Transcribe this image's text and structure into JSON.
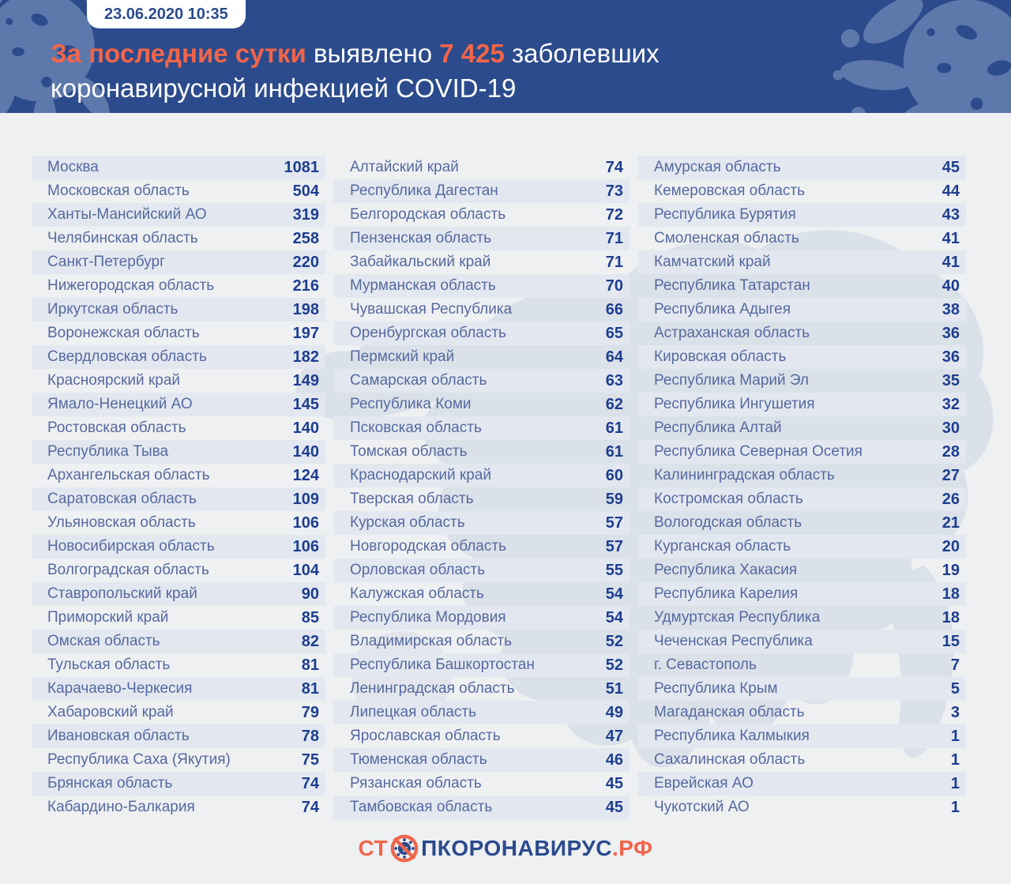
{
  "colors": {
    "navy": "#2B4B8C",
    "orange": "#F1654A",
    "body_bg": "#EEF0F2",
    "stripe": "#E3E8F0",
    "region_text": "#56699F",
    "value_text": "#1D3E8F",
    "blob": "#5D78AB",
    "map": "#CDD5E2",
    "badge_bg": "#FFFFFF"
  },
  "header": {
    "badge_datetime": "23.06.2020 10:35",
    "title": {
      "highlight1": "За последние сутки",
      "normal1": " выявлено ",
      "count": "7 425",
      "normal2": " заболевших",
      "line2": "коронавирусной инфекцией COVID-19"
    }
  },
  "chart_data": {
    "type": "table",
    "title": "За последние сутки выявлено 7 425 заболевших коронавирусной инфекцией COVID-19",
    "timestamp": "23.06.2020 10:35",
    "total_new_cases": 7425,
    "unit": "заболевших за сутки",
    "columns": [
      {
        "rows": [
          [
            "Москва",
            1081
          ],
          [
            "Московская область",
            504
          ],
          [
            "Ханты-Мансийский АО",
            319
          ],
          [
            "Челябинская область",
            258
          ],
          [
            "Санкт-Петербург",
            220
          ],
          [
            "Нижегородская область",
            216
          ],
          [
            "Иркутская область",
            198
          ],
          [
            "Воронежская область",
            197
          ],
          [
            "Свердловская область",
            182
          ],
          [
            "Красноярский край",
            149
          ],
          [
            "Ямало-Ненецкий АО",
            145
          ],
          [
            "Ростовская область",
            140
          ],
          [
            "Республика Тыва",
            140
          ],
          [
            "Архангельская область",
            124
          ],
          [
            "Саратовская область",
            109
          ],
          [
            "Ульяновская область",
            106
          ],
          [
            "Новосибирская область",
            106
          ],
          [
            "Волгоградская область",
            104
          ],
          [
            "Ставропольский край",
            90
          ],
          [
            "Приморский край",
            85
          ],
          [
            "Омская область",
            82
          ],
          [
            "Тульская область",
            81
          ],
          [
            "Карачаево-Черкесия",
            81
          ],
          [
            "Хабаровский край",
            79
          ],
          [
            "Ивановская область",
            78
          ],
          [
            "Республика Саха (Якутия)",
            75
          ],
          [
            "Брянская область",
            74
          ],
          [
            "Кабардино-Балкария",
            74
          ]
        ]
      },
      {
        "rows": [
          [
            "Алтайский край",
            74
          ],
          [
            "Республика Дагестан",
            73
          ],
          [
            "Белгородская область",
            72
          ],
          [
            "Пензенская область",
            71
          ],
          [
            "Забайкальский край",
            71
          ],
          [
            "Мурманская область",
            70
          ],
          [
            "Чувашская Республика",
            66
          ],
          [
            "Оренбургская область",
            65
          ],
          [
            "Пермский край",
            64
          ],
          [
            "Самарская область",
            63
          ],
          [
            "Республика Коми",
            62
          ],
          [
            "Псковская область",
            61
          ],
          [
            "Томская область",
            61
          ],
          [
            "Краснодарский край",
            60
          ],
          [
            "Тверская область",
            59
          ],
          [
            "Курская область",
            57
          ],
          [
            "Новгородская область",
            57
          ],
          [
            "Орловская область",
            55
          ],
          [
            "Калужская область",
            54
          ],
          [
            "Республика Мордовия",
            54
          ],
          [
            "Владимирская область",
            52
          ],
          [
            "Республика Башкортостан",
            52
          ],
          [
            "Ленинградская область",
            51
          ],
          [
            "Липецкая область",
            49
          ],
          [
            "Ярославская область",
            47
          ],
          [
            "Тюменская область",
            46
          ],
          [
            "Рязанская область",
            45
          ],
          [
            "Тамбовская область",
            45
          ]
        ]
      },
      {
        "rows": [
          [
            "Амурская область",
            45
          ],
          [
            "Кемеровская область",
            44
          ],
          [
            "Республика Бурятия",
            43
          ],
          [
            "Смоленская область",
            41
          ],
          [
            "Камчатский край",
            41
          ],
          [
            "Республика Татарстан",
            40
          ],
          [
            "Республика Адыгея",
            38
          ],
          [
            "Астраханская область",
            36
          ],
          [
            "Кировская область",
            36
          ],
          [
            "Республика Марий Эл",
            35
          ],
          [
            "Республика Ингушетия",
            32
          ],
          [
            "Республика Алтай",
            30
          ],
          [
            "Республика Северная Осетия",
            28
          ],
          [
            "Калининградская область",
            27
          ],
          [
            "Костромская область",
            26
          ],
          [
            "Вологодская область",
            21
          ],
          [
            "Курганская область",
            20
          ],
          [
            "Республика Хакасия",
            19
          ],
          [
            "Республика Карелия",
            18
          ],
          [
            "Удмуртская Республика",
            18
          ],
          [
            "Чеченская Республика",
            15
          ],
          [
            "г. Севастополь",
            7
          ],
          [
            "Республика Крым",
            5
          ],
          [
            "Магаданская область",
            3
          ],
          [
            "Республика Калмыкия",
            1
          ],
          [
            "Сахалинская область",
            1
          ],
          [
            "Еврейская АО",
            1
          ],
          [
            "Чукотский АО",
            1
          ]
        ]
      }
    ]
  },
  "footer": {
    "logo_prefix": "СТ",
    "logo_middle": "ПКОРОНАВИРУС",
    "logo_suffix": ".РФ"
  }
}
